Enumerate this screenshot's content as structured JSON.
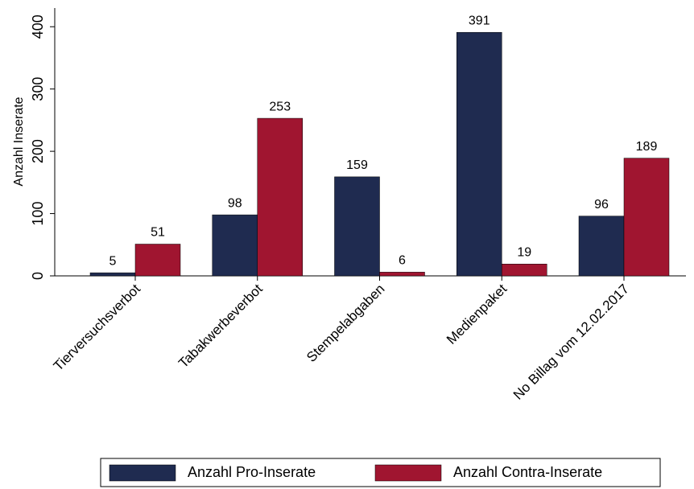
{
  "chart_data": {
    "type": "bar",
    "y_label": "Anzahl Inserate",
    "categories": [
      "Tierversuchsverbot",
      "Tabakwerbeverbot",
      "Stempelabgaben",
      "Medienpaket",
      "No Billag vom 12.02.2017"
    ],
    "series": [
      {
        "name": "Anzahl Pro-Inserate",
        "color": "#1f2b50",
        "values": [
          5,
          98,
          159,
          391,
          96
        ]
      },
      {
        "name": "Anzahl Contra-Inserate",
        "color": "#a01530",
        "values": [
          51,
          253,
          6,
          19,
          189
        ]
      }
    ],
    "ylim": [
      0,
      430
    ],
    "yticks": [
      0,
      100,
      200,
      300,
      400
    ],
    "grid": false,
    "legend": "bottom"
  }
}
